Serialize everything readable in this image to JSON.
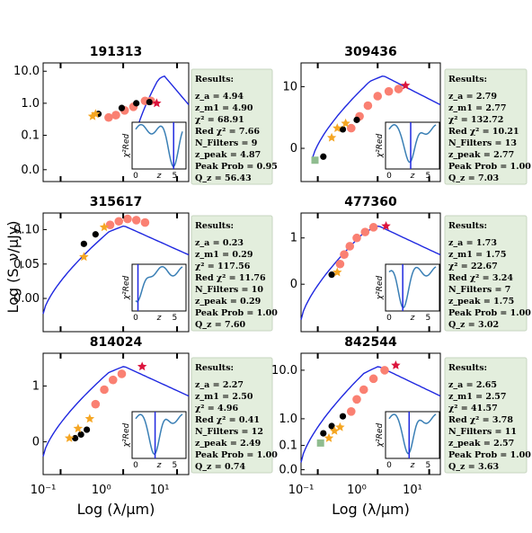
{
  "figure": {
    "xlabel": "Log (λ/μm)",
    "ylabel": "Log (S_ν/μJy)",
    "xticks": [
      "10⁻¹",
      "10⁰",
      "10¹"
    ],
    "colors": {
      "model": "#1f28e0",
      "photometry": "#fa8072",
      "black": "#000000",
      "star": "#f5a623",
      "red_star": "#dc143c",
      "green": "#8fbc8f",
      "panel": "#e3eedd",
      "inset_line": "#3a7fb5"
    }
  },
  "chart_data": [
    {
      "type": "scatter",
      "title": "191313",
      "yticks": [
        "0.0",
        "0.1",
        "1.0",
        "10.0"
      ],
      "results": {
        "heading": "Results:",
        "za": "4.94",
        "zm1": "4.90",
        "chi2": "68.91",
        "red_chi2": "7.66",
        "nfilters": "9",
        "zpeak": "4.87",
        "peak_prob": "0.95",
        "qz": "56.43"
      },
      "inset": {
        "ylabel": "χ²Red",
        "xlabel": "z",
        "xticks": [
          "0",
          "5"
        ],
        "zpeak": 4.87
      }
    },
    {
      "type": "scatter",
      "title": "309436",
      "yticks": [
        "0",
        "10"
      ],
      "results": {
        "heading": "Results:",
        "za": "2.79",
        "zm1": "2.77",
        "chi2": "132.72",
        "red_chi2": "10.21",
        "nfilters": "13",
        "zpeak": "2.77",
        "peak_prob": "1.00",
        "qz": "7.03"
      },
      "inset": {
        "ylabel": "χ²Red",
        "xlabel": "z",
        "xticks": [
          "0",
          "5"
        ],
        "zpeak": 2.77
      }
    },
    {
      "type": "scatter",
      "title": "315617",
      "yticks": [
        "0.00",
        "0.05",
        "0.10"
      ],
      "results": {
        "heading": "Results:",
        "za": "0.23",
        "zm1": "0.29",
        "chi2": "117.56",
        "red_chi2": "11.76",
        "nfilters": "10",
        "zpeak": "0.29",
        "peak_prob": "1.00",
        "qz": "7.60"
      },
      "inset": {
        "ylabel": "χ²Red",
        "xlabel": "z",
        "xticks": [
          "0",
          "5"
        ],
        "zpeak": 0.29
      }
    },
    {
      "type": "scatter",
      "title": "477360",
      "yticks": [
        "0",
        "1"
      ],
      "results": {
        "heading": "Results:",
        "za": "1.73",
        "zm1": "1.75",
        "chi2": "22.67",
        "red_chi2": "3.24",
        "nfilters": "7",
        "zpeak": "1.75",
        "peak_prob": "1.00",
        "qz": "3.02"
      },
      "inset": {
        "ylabel": "χ²Red",
        "xlabel": "z",
        "xticks": [
          "0",
          "5"
        ],
        "zpeak": 1.75
      }
    },
    {
      "type": "scatter",
      "title": "814024",
      "yticks": [
        "0",
        "1"
      ],
      "results": {
        "heading": "Results:",
        "za": "2.27",
        "zm1": "2.50",
        "chi2": "4.96",
        "red_chi2": "0.41",
        "nfilters": "12",
        "zpeak": "2.49",
        "peak_prob": "1.00",
        "qz": "0.74"
      },
      "inset": {
        "ylabel": "χ²Red",
        "xlabel": "z",
        "xticks": [
          "0",
          "5"
        ],
        "zpeak": 2.49
      }
    },
    {
      "type": "scatter",
      "title": "842544",
      "yticks": [
        "0.0",
        "0.1",
        "1.0",
        "10.0"
      ],
      "results": {
        "heading": "Results:",
        "za": "2.65",
        "zm1": "2.57",
        "chi2": "41.57",
        "red_chi2": "3.78",
        "nfilters": "11",
        "zpeak": "2.57",
        "peak_prob": "1.00",
        "qz": "3.63"
      },
      "inset": {
        "ylabel": "χ²Red",
        "xlabel": "z",
        "xticks": [
          "0",
          "5"
        ],
        "zpeak": 2.57
      }
    }
  ]
}
